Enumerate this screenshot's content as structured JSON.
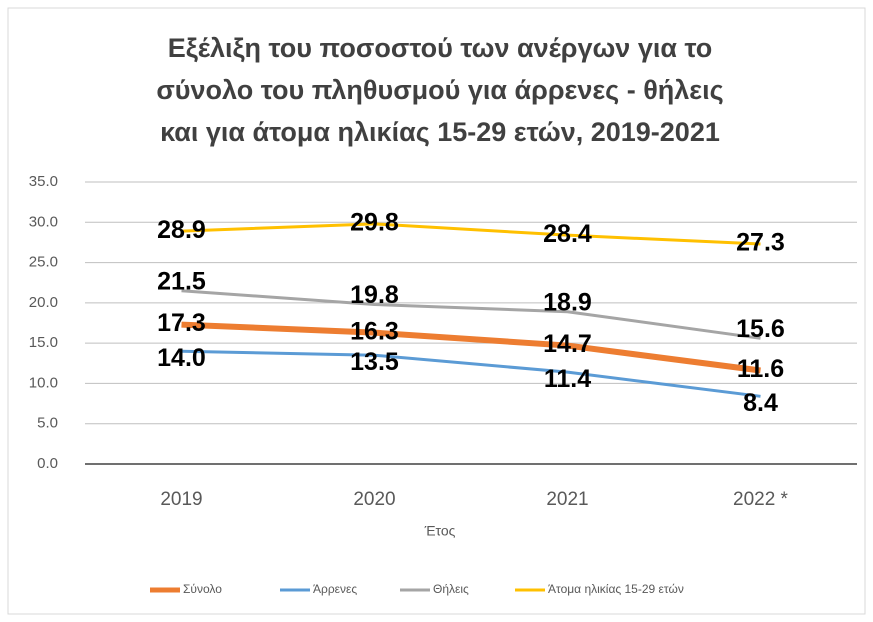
{
  "chart_data": {
    "type": "line",
    "title": [
      "Εξέλιξη του ποσοστού των ανέργων για το",
      "σύνολο του πληθυσμού για άρρενες - θήλεις",
      "και για άτομα ηλικίας 15-29 ετών, 2019-2021"
    ],
    "x_label": "Έτος",
    "categories": [
      "2019",
      "2020",
      "2021",
      "2022 *"
    ],
    "series": [
      {
        "name": "Σύνολο",
        "color": "#ED7D31",
        "values": [
          17.3,
          16.3,
          14.7,
          11.6
        ],
        "value_labels": [
          "17.3",
          "16.3",
          "14.7",
          "11.6"
        ]
      },
      {
        "name": "Άρρενες",
        "color": "#5B9BD5",
        "values": [
          14.0,
          13.5,
          11.4,
          8.4
        ],
        "value_labels": [
          "14.0",
          "13.5",
          "11.4",
          "8.4"
        ]
      },
      {
        "name": "Θήλεις",
        "color": "#A5A5A5",
        "values": [
          21.5,
          19.8,
          18.9,
          15.6
        ],
        "value_labels": [
          "21.5",
          "19.8",
          "18.9",
          "15.6"
        ]
      },
      {
        "name": "Άτομα ηλικίας 15-29 ετών",
        "color": "#FFC000",
        "values": [
          28.9,
          29.8,
          28.4,
          27.3
        ],
        "value_labels": [
          "28.9",
          "29.8",
          "28.4",
          "27.3"
        ]
      }
    ],
    "ylim": [
      0,
      35
    ],
    "yticks": [
      {
        "value": 0,
        "label": "0.0"
      },
      {
        "value": 5,
        "label": "5.0"
      },
      {
        "value": 10,
        "label": "10.0"
      },
      {
        "value": 15,
        "label": "15.0"
      },
      {
        "value": 20,
        "label": "20.0"
      },
      {
        "value": 25,
        "label": "25.0"
      },
      {
        "value": 30,
        "label": "30.0"
      },
      {
        "value": 35,
        "label": "35.0"
      }
    ],
    "grid": true,
    "legend": "bottom"
  }
}
